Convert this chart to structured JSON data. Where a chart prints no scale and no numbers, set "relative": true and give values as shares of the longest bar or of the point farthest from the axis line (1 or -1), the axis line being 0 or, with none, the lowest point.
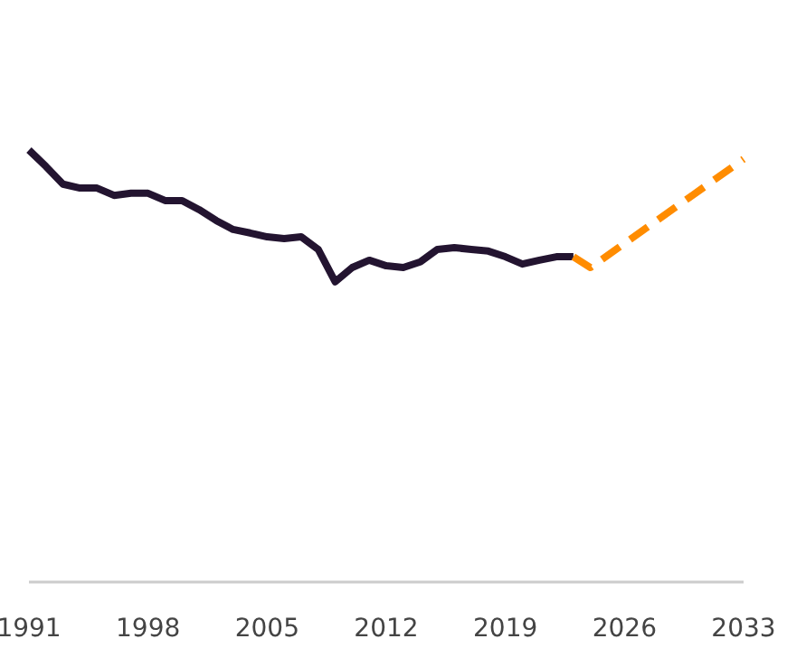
{
  "chart_data": {
    "type": "line",
    "relative": true,
    "xlim": [
      1991,
      2033
    ],
    "xticks": [
      1991,
      1998,
      2005,
      2012,
      2019,
      2026,
      2033
    ],
    "grid": false,
    "series": [
      {
        "color": "#231430",
        "line_style": "solid",
        "x": [
          1991,
          1992,
          1993,
          1994,
          1995,
          1996,
          1997,
          1998,
          1999,
          2000,
          2001,
          2002,
          2003,
          2004,
          2005,
          2006,
          2007,
          2008,
          2009,
          2010,
          2011,
          2012,
          2013,
          2014,
          2015,
          2016,
          2017,
          2018,
          2019,
          2020,
          2021,
          2022,
          2023
        ],
        "values": [
          1.0,
          0.962,
          0.921,
          0.912,
          0.912,
          0.895,
          0.9,
          0.9,
          0.883,
          0.883,
          0.862,
          0.837,
          0.816,
          0.808,
          0.799,
          0.795,
          0.799,
          0.77,
          0.695,
          0.728,
          0.745,
          0.732,
          0.728,
          0.741,
          0.77,
          0.774,
          0.77,
          0.766,
          0.753,
          0.736,
          0.745,
          0.753,
          0.753
        ]
      },
      {
        "color": "#ff8c00",
        "line_style": "dashed",
        "x": [
          2023,
          2024,
          2033
        ],
        "values": [
          0.753,
          0.728,
          0.979
        ]
      }
    ]
  }
}
